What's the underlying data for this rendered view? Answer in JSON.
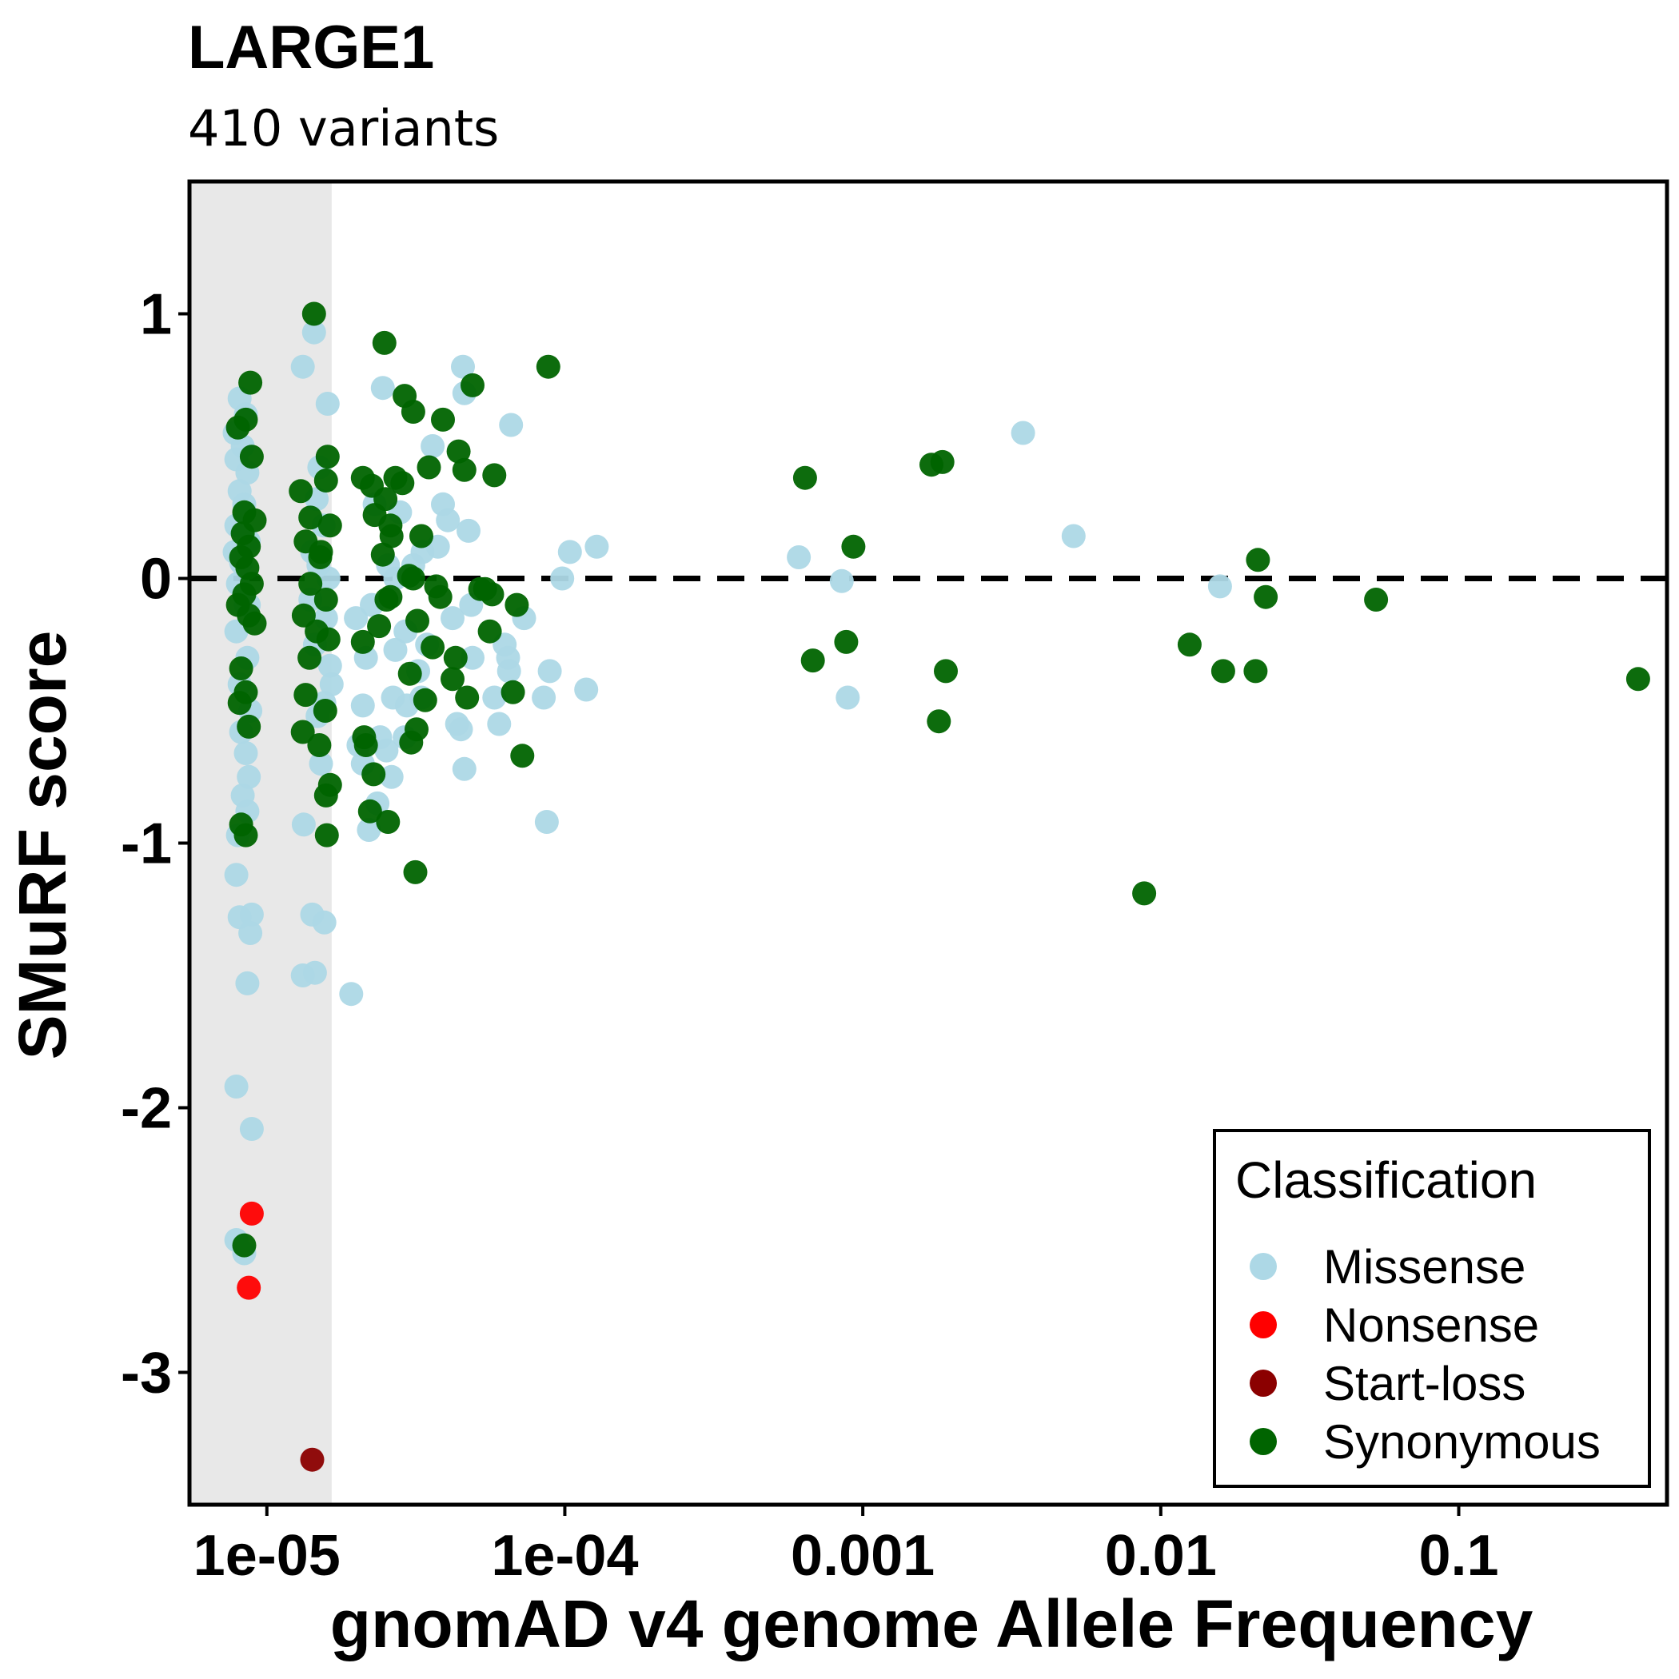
{
  "chart_data": {
    "type": "scatter",
    "title": "LARGE1",
    "subtitle": "410 variants",
    "xlabel": "gnomAD v4 genome Allele Frequency",
    "ylabel": "SMuRF score",
    "x_scale": "log10",
    "xlim": [
      5.5e-06,
      0.5
    ],
    "ylim": [
      -3.5,
      1.5
    ],
    "x_ticks": [
      {
        "value": 1e-05,
        "label": "1e-05"
      },
      {
        "value": 0.0001,
        "label": "1e-04"
      },
      {
        "value": 0.001,
        "label": "0.001"
      },
      {
        "value": 0.01,
        "label": "0.01"
      },
      {
        "value": 0.1,
        "label": "0.1"
      }
    ],
    "y_ticks": [
      {
        "value": 1,
        "label": "1"
      },
      {
        "value": 0,
        "label": "0"
      },
      {
        "value": -1,
        "label": "-1"
      },
      {
        "value": -2,
        "label": "-2"
      },
      {
        "value": -3,
        "label": "-3"
      }
    ],
    "reference_line_y": 0,
    "shaded_region_x": [
      5.5e-06,
      1.65e-05
    ],
    "grid": false,
    "legend": {
      "title": "Classification",
      "position": "bottom-right"
    },
    "colors": {
      "Missense": "#add8e6",
      "Nonsense": "#ff0000",
      "Start-loss": "#8b0000",
      "Synonymous": "#006400",
      "shade": "#e8e8e8"
    },
    "series": [
      {
        "name": "Missense",
        "points": [
          [
            8.1e-06,
            0.68
          ],
          [
            8.5e-06,
            0.62
          ],
          [
            7.8e-06,
            0.55
          ],
          [
            8.3e-06,
            0.5
          ],
          [
            7.9e-06,
            0.45
          ],
          [
            8.6e-06,
            0.4
          ],
          [
            8.1e-06,
            0.33
          ],
          [
            8.4e-06,
            0.28
          ],
          [
            7.9e-06,
            0.2
          ],
          [
            8.7e-06,
            0.14
          ],
          [
            8.2e-06,
            0.06
          ],
          [
            8e-06,
            -0.02
          ],
          [
            8.5e-06,
            -0.1
          ],
          [
            7.9e-06,
            -0.2
          ],
          [
            8.6e-06,
            -0.3
          ],
          [
            8.1e-06,
            -0.4
          ],
          [
            8.8e-06,
            -0.5
          ],
          [
            8.2e-06,
            -0.58
          ],
          [
            8.5e-06,
            -0.66
          ],
          [
            8.7e-06,
            -0.75
          ],
          [
            8.3e-06,
            -0.82
          ],
          [
            8.6e-06,
            -0.88
          ],
          [
            8e-06,
            -0.97
          ],
          [
            7.9e-06,
            -1.12
          ],
          [
            8.1e-06,
            -1.28
          ],
          [
            8.9e-06,
            -1.27
          ],
          [
            8.8e-06,
            -1.34
          ],
          [
            8.6e-06,
            -1.53
          ],
          [
            7.9e-06,
            -1.92
          ],
          [
            8.9e-06,
            -2.08
          ],
          [
            7.9e-06,
            -2.5
          ],
          [
            8.4e-06,
            -2.55
          ],
          [
            8.7e-06,
            -0.1
          ],
          [
            7.8e-06,
            0.1
          ],
          [
            1.44e-05,
            0.93
          ],
          [
            1.32e-05,
            0.8
          ],
          [
            1.6e-05,
            0.66
          ],
          [
            1.5e-05,
            0.42
          ],
          [
            1.47e-05,
            0.3
          ],
          [
            1.55e-05,
            0.2
          ],
          [
            1.42e-05,
            0.1
          ],
          [
            1.49e-05,
            0.05
          ],
          [
            1.61e-05,
            0.0
          ],
          [
            1.4e-05,
            -0.08
          ],
          [
            1.58e-05,
            -0.15
          ],
          [
            1.45e-05,
            -0.25
          ],
          [
            1.63e-05,
            -0.33
          ],
          [
            1.65e-05,
            -0.4
          ],
          [
            1.56e-05,
            -0.47
          ],
          [
            1.48e-05,
            -0.52
          ],
          [
            1.52e-05,
            -0.7
          ],
          [
            1.33e-05,
            -0.93
          ],
          [
            1.42e-05,
            -1.27
          ],
          [
            1.56e-05,
            -1.3
          ],
          [
            1.32e-05,
            -1.5
          ],
          [
            1.45e-05,
            -1.49
          ],
          [
            1.92e-05,
            -1.57
          ],
          [
            1.99e-05,
            -0.15
          ],
          [
            2.15e-05,
            -0.3
          ],
          [
            2.25e-05,
            -0.1
          ],
          [
            2.3e-05,
            0.28
          ],
          [
            2.45e-05,
            0.72
          ],
          [
            2.1e-05,
            -0.7
          ],
          [
            2.35e-05,
            -0.85
          ],
          [
            2.2e-05,
            -0.95
          ],
          [
            2.52e-05,
            -0.65
          ],
          [
            2.62e-05,
            -0.75
          ],
          [
            2.8e-05,
            0.25
          ],
          [
            2.92e-05,
            -0.2
          ],
          [
            3.1e-05,
            0.05
          ],
          [
            3.22e-05,
            -0.35
          ],
          [
            3.33e-05,
            0.1
          ],
          [
            3.45e-05,
            -0.25
          ],
          [
            3.6e-05,
            0.5
          ],
          [
            3.75e-05,
            0.12
          ],
          [
            3.9e-05,
            0.28
          ],
          [
            4.05e-05,
            0.22
          ],
          [
            4.2e-05,
            -0.15
          ],
          [
            4.35e-05,
            -0.55
          ],
          [
            4.48e-05,
            -0.57
          ],
          [
            4.6e-05,
            -0.72
          ],
          [
            4.75e-05,
            0.18
          ],
          [
            4.55e-05,
            0.8
          ],
          [
            4.6e-05,
            0.7
          ],
          [
            4.85e-05,
            -0.1
          ],
          [
            4.9e-05,
            -0.3
          ],
          [
            2.65e-05,
            -0.45
          ],
          [
            2.7e-05,
            -0.27
          ],
          [
            2.9e-05,
            -0.6
          ],
          [
            3.3e-05,
            -0.45
          ],
          [
            2.95e-05,
            -0.48
          ],
          [
            2.1e-05,
            -0.48
          ],
          [
            2.03e-05,
            -0.63
          ],
          [
            2.55e-05,
            0.05
          ],
          [
            2.4e-05,
            -0.6
          ],
          [
            2.7e-05,
            0.0
          ],
          [
            6.6e-05,
            0.58
          ],
          [
            5.8e-05,
            -0.45
          ],
          [
            6.02e-05,
            -0.55
          ],
          [
            6.28e-05,
            -0.25
          ],
          [
            6.45e-05,
            -0.3
          ],
          [
            6.5e-05,
            -0.35
          ],
          [
            7.3e-05,
            -0.15
          ],
          [
            8.5e-05,
            -0.45
          ],
          [
            8.7e-05,
            -0.92
          ],
          [
            8.9e-05,
            -0.35
          ],
          [
            9.8e-05,
            0.0
          ],
          [
            0.000104,
            0.1
          ],
          [
            0.000118,
            -0.42
          ],
          [
            0.000128,
            0.12
          ],
          [
            0.00061,
            0.08
          ],
          [
            0.00085,
            -0.01
          ],
          [
            0.00089,
            -0.45
          ],
          [
            0.00345,
            0.55
          ],
          [
            0.0051,
            0.16
          ],
          [
            0.0158,
            -0.03
          ]
        ]
      },
      {
        "name": "Nonsense",
        "points": [
          [
            8.9e-06,
            -2.4
          ],
          [
            8.7e-06,
            -2.68
          ]
        ]
      },
      {
        "name": "Start-loss",
        "points": [
          [
            1.42e-05,
            -3.33
          ]
        ]
      },
      {
        "name": "Synonymous",
        "points": [
          [
            8.8e-06,
            0.74
          ],
          [
            8.5e-06,
            0.6
          ],
          [
            8e-06,
            0.57
          ],
          [
            8.9e-06,
            0.46
          ],
          [
            8.4e-06,
            0.25
          ],
          [
            9.1e-06,
            0.22
          ],
          [
            8.3e-06,
            0.17
          ],
          [
            8.7e-06,
            0.12
          ],
          [
            8.2e-06,
            0.08
          ],
          [
            8.6e-06,
            0.04
          ],
          [
            8.9e-06,
            -0.02
          ],
          [
            8.4e-06,
            -0.06
          ],
          [
            8e-06,
            -0.1
          ],
          [
            8.7e-06,
            -0.14
          ],
          [
            9.1e-06,
            -0.17
          ],
          [
            8.2e-06,
            -0.34
          ],
          [
            8.5e-06,
            -0.43
          ],
          [
            8.1e-06,
            -0.47
          ],
          [
            8.7e-06,
            -0.56
          ],
          [
            8.2e-06,
            -0.93
          ],
          [
            8.5e-06,
            -0.97
          ],
          [
            8.4e-06,
            -2.52
          ],
          [
            1.44e-05,
            1.0
          ],
          [
            1.6e-05,
            0.46
          ],
          [
            1.3e-05,
            0.33
          ],
          [
            1.58e-05,
            0.37
          ],
          [
            1.4e-05,
            0.23
          ],
          [
            1.63e-05,
            0.2
          ],
          [
            1.35e-05,
            0.14
          ],
          [
            1.52e-05,
            0.1
          ],
          [
            1.4e-05,
            -0.02
          ],
          [
            1.58e-05,
            -0.08
          ],
          [
            1.33e-05,
            -0.14
          ],
          [
            1.47e-05,
            -0.2
          ],
          [
            1.61e-05,
            -0.23
          ],
          [
            1.39e-05,
            -0.3
          ],
          [
            1.35e-05,
            -0.44
          ],
          [
            1.57e-05,
            -0.5
          ],
          [
            1.32e-05,
            -0.58
          ],
          [
            1.5e-05,
            -0.63
          ],
          [
            1.63e-05,
            -0.78
          ],
          [
            1.58e-05,
            -0.82
          ],
          [
            1.59e-05,
            -0.97
          ],
          [
            1.51e-05,
            0.08
          ],
          [
            2.48e-05,
            0.89
          ],
          [
            2.1e-05,
            0.38
          ],
          [
            2.25e-05,
            0.35
          ],
          [
            2.3e-05,
            0.24
          ],
          [
            2.5e-05,
            0.3
          ],
          [
            2.6e-05,
            0.2
          ],
          [
            2.62e-05,
            0.16
          ],
          [
            2.45e-05,
            0.09
          ],
          [
            2.7e-05,
            0.38
          ],
          [
            2.85e-05,
            0.36
          ],
          [
            3e-05,
            0.01
          ],
          [
            3.1e-05,
            0.0
          ],
          [
            2.52e-05,
            -0.08
          ],
          [
            2.6e-05,
            -0.07
          ],
          [
            2.38e-05,
            -0.18
          ],
          [
            2.1e-05,
            -0.24
          ],
          [
            2.12e-05,
            -0.6
          ],
          [
            2.15e-05,
            -0.63
          ],
          [
            2.28e-05,
            -0.74
          ],
          [
            2.22e-05,
            -0.88
          ],
          [
            2.55e-05,
            -0.92
          ],
          [
            2.9e-05,
            0.69
          ],
          [
            3.1e-05,
            0.63
          ],
          [
            3.3e-05,
            0.16
          ],
          [
            3.2e-05,
            -0.16
          ],
          [
            3.05e-05,
            -0.62
          ],
          [
            3.5e-05,
            0.42
          ],
          [
            3.7e-05,
            -0.03
          ],
          [
            3.82e-05,
            -0.07
          ],
          [
            3.9e-05,
            0.6
          ],
          [
            3.6e-05,
            -0.26
          ],
          [
            3.18e-05,
            -0.57
          ],
          [
            3.02e-05,
            -0.36
          ],
          [
            3.4e-05,
            -0.46
          ],
          [
            3.15e-05,
            -1.11
          ],
          [
            4.4e-05,
            0.48
          ],
          [
            4.6e-05,
            0.41
          ],
          [
            4.2e-05,
            -0.38
          ],
          [
            4.3e-05,
            -0.3
          ],
          [
            4.7e-05,
            -0.45
          ],
          [
            4.9e-05,
            0.73
          ],
          [
            5.2e-05,
            -0.04
          ],
          [
            5.4e-05,
            -0.04
          ],
          [
            5.7e-05,
            -0.06
          ],
          [
            5.6e-05,
            -0.2
          ],
          [
            5.8e-05,
            0.39
          ],
          [
            6.9e-05,
            -0.1
          ],
          [
            6.7e-05,
            -0.43
          ],
          [
            7.2e-05,
            -0.67
          ],
          [
            8.8e-05,
            0.8
          ],
          [
            0.00064,
            0.38
          ],
          [
            0.00068,
            -0.31
          ],
          [
            0.00088,
            -0.24
          ],
          [
            0.00093,
            0.12
          ],
          [
            0.0017,
            0.43
          ],
          [
            0.00185,
            0.44
          ],
          [
            0.0018,
            -0.54
          ],
          [
            0.0019,
            -0.35
          ],
          [
            0.0088,
            -1.19
          ],
          [
            0.0125,
            -0.25
          ],
          [
            0.0162,
            -0.35
          ],
          [
            0.0212,
            0.07
          ],
          [
            0.0225,
            -0.07
          ],
          [
            0.0208,
            -0.35
          ],
          [
            0.0528,
            -0.08
          ],
          [
            0.4,
            -0.38
          ]
        ]
      }
    ]
  }
}
